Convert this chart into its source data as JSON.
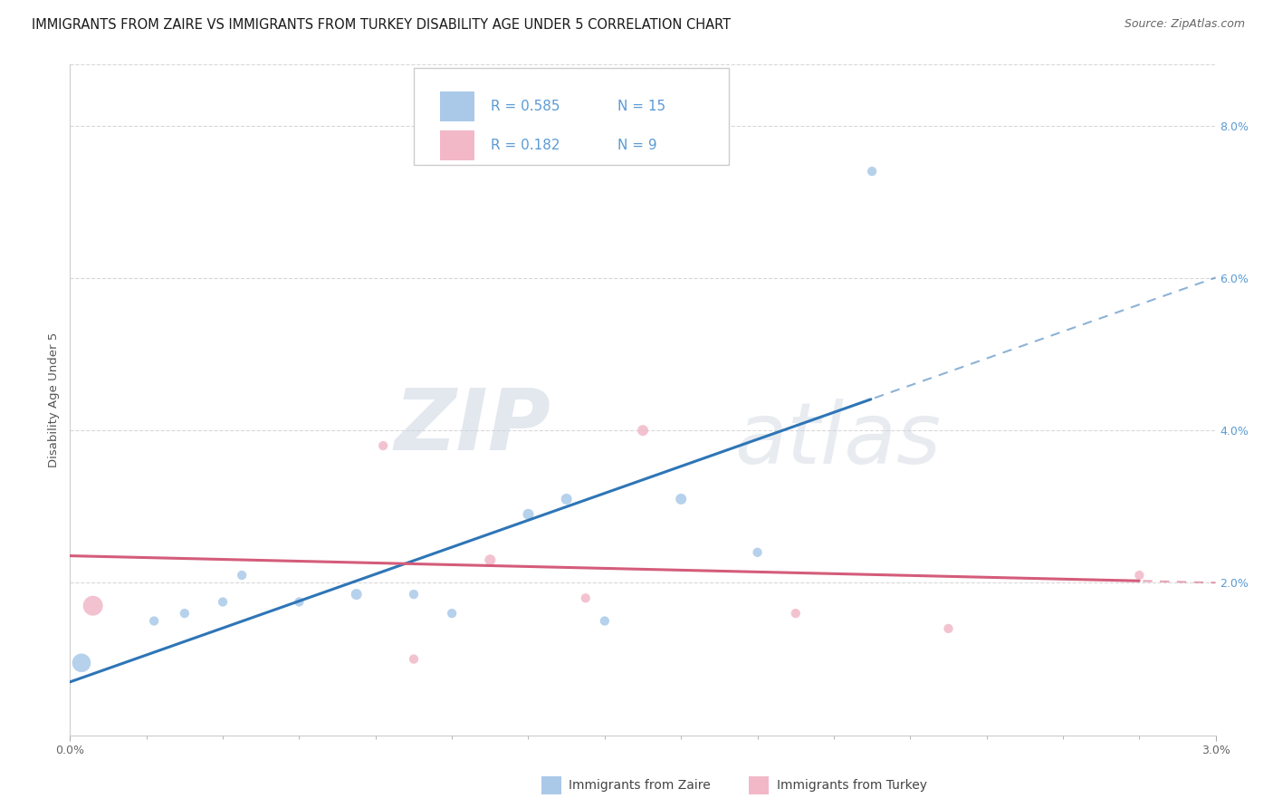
{
  "title": "IMMIGRANTS FROM ZAIRE VS IMMIGRANTS FROM TURKEY DISABILITY AGE UNDER 5 CORRELATION CHART",
  "source": "Source: ZipAtlas.com",
  "ylabel": "Disability Age Under 5",
  "xlim": [
    0.0,
    0.03
  ],
  "ylim": [
    0.0,
    0.088
  ],
  "zaire_x": [
    0.0003,
    0.0022,
    0.003,
    0.004,
    0.0045,
    0.006,
    0.0075,
    0.009,
    0.01,
    0.012,
    0.013,
    0.014,
    0.016,
    0.018,
    0.021
  ],
  "zaire_y": [
    0.0095,
    0.015,
    0.016,
    0.0175,
    0.021,
    0.0175,
    0.0185,
    0.0185,
    0.016,
    0.029,
    0.031,
    0.015,
    0.031,
    0.024,
    0.074
  ],
  "zaire_sizes": [
    220,
    55,
    55,
    55,
    55,
    55,
    75,
    55,
    55,
    75,
    75,
    55,
    75,
    55,
    55
  ],
  "turkey_x": [
    0.0006,
    0.0082,
    0.009,
    0.011,
    0.0135,
    0.015,
    0.019,
    0.023,
    0.028
  ],
  "turkey_y": [
    0.017,
    0.038,
    0.01,
    0.023,
    0.018,
    0.04,
    0.016,
    0.014,
    0.021
  ],
  "turkey_sizes": [
    250,
    55,
    55,
    75,
    55,
    75,
    55,
    55,
    55
  ],
  "zaire_color": "#aac9e8",
  "turkey_color": "#f2b8c8",
  "zaire_line_color": "#2e75b6",
  "turkey_line_color": "#d45c7a",
  "R_zaire": 0.585,
  "N_zaire": 15,
  "R_turkey": 0.182,
  "N_turkey": 9,
  "legend_zaire": "Immigrants from Zaire",
  "legend_turkey": "Immigrants from Turkey",
  "watermark_zip": "ZIP",
  "watermark_atlas": "atlas",
  "background_color": "#ffffff",
  "grid_color": "#d8d8d8",
  "title_fontsize": 10.5,
  "axis_label_fontsize": 9.5,
  "tick_fontsize": 9,
  "source_fontsize": 9,
  "right_tick_color": "#5b9bd5",
  "legend_r_n_color": "#5b9bd5"
}
